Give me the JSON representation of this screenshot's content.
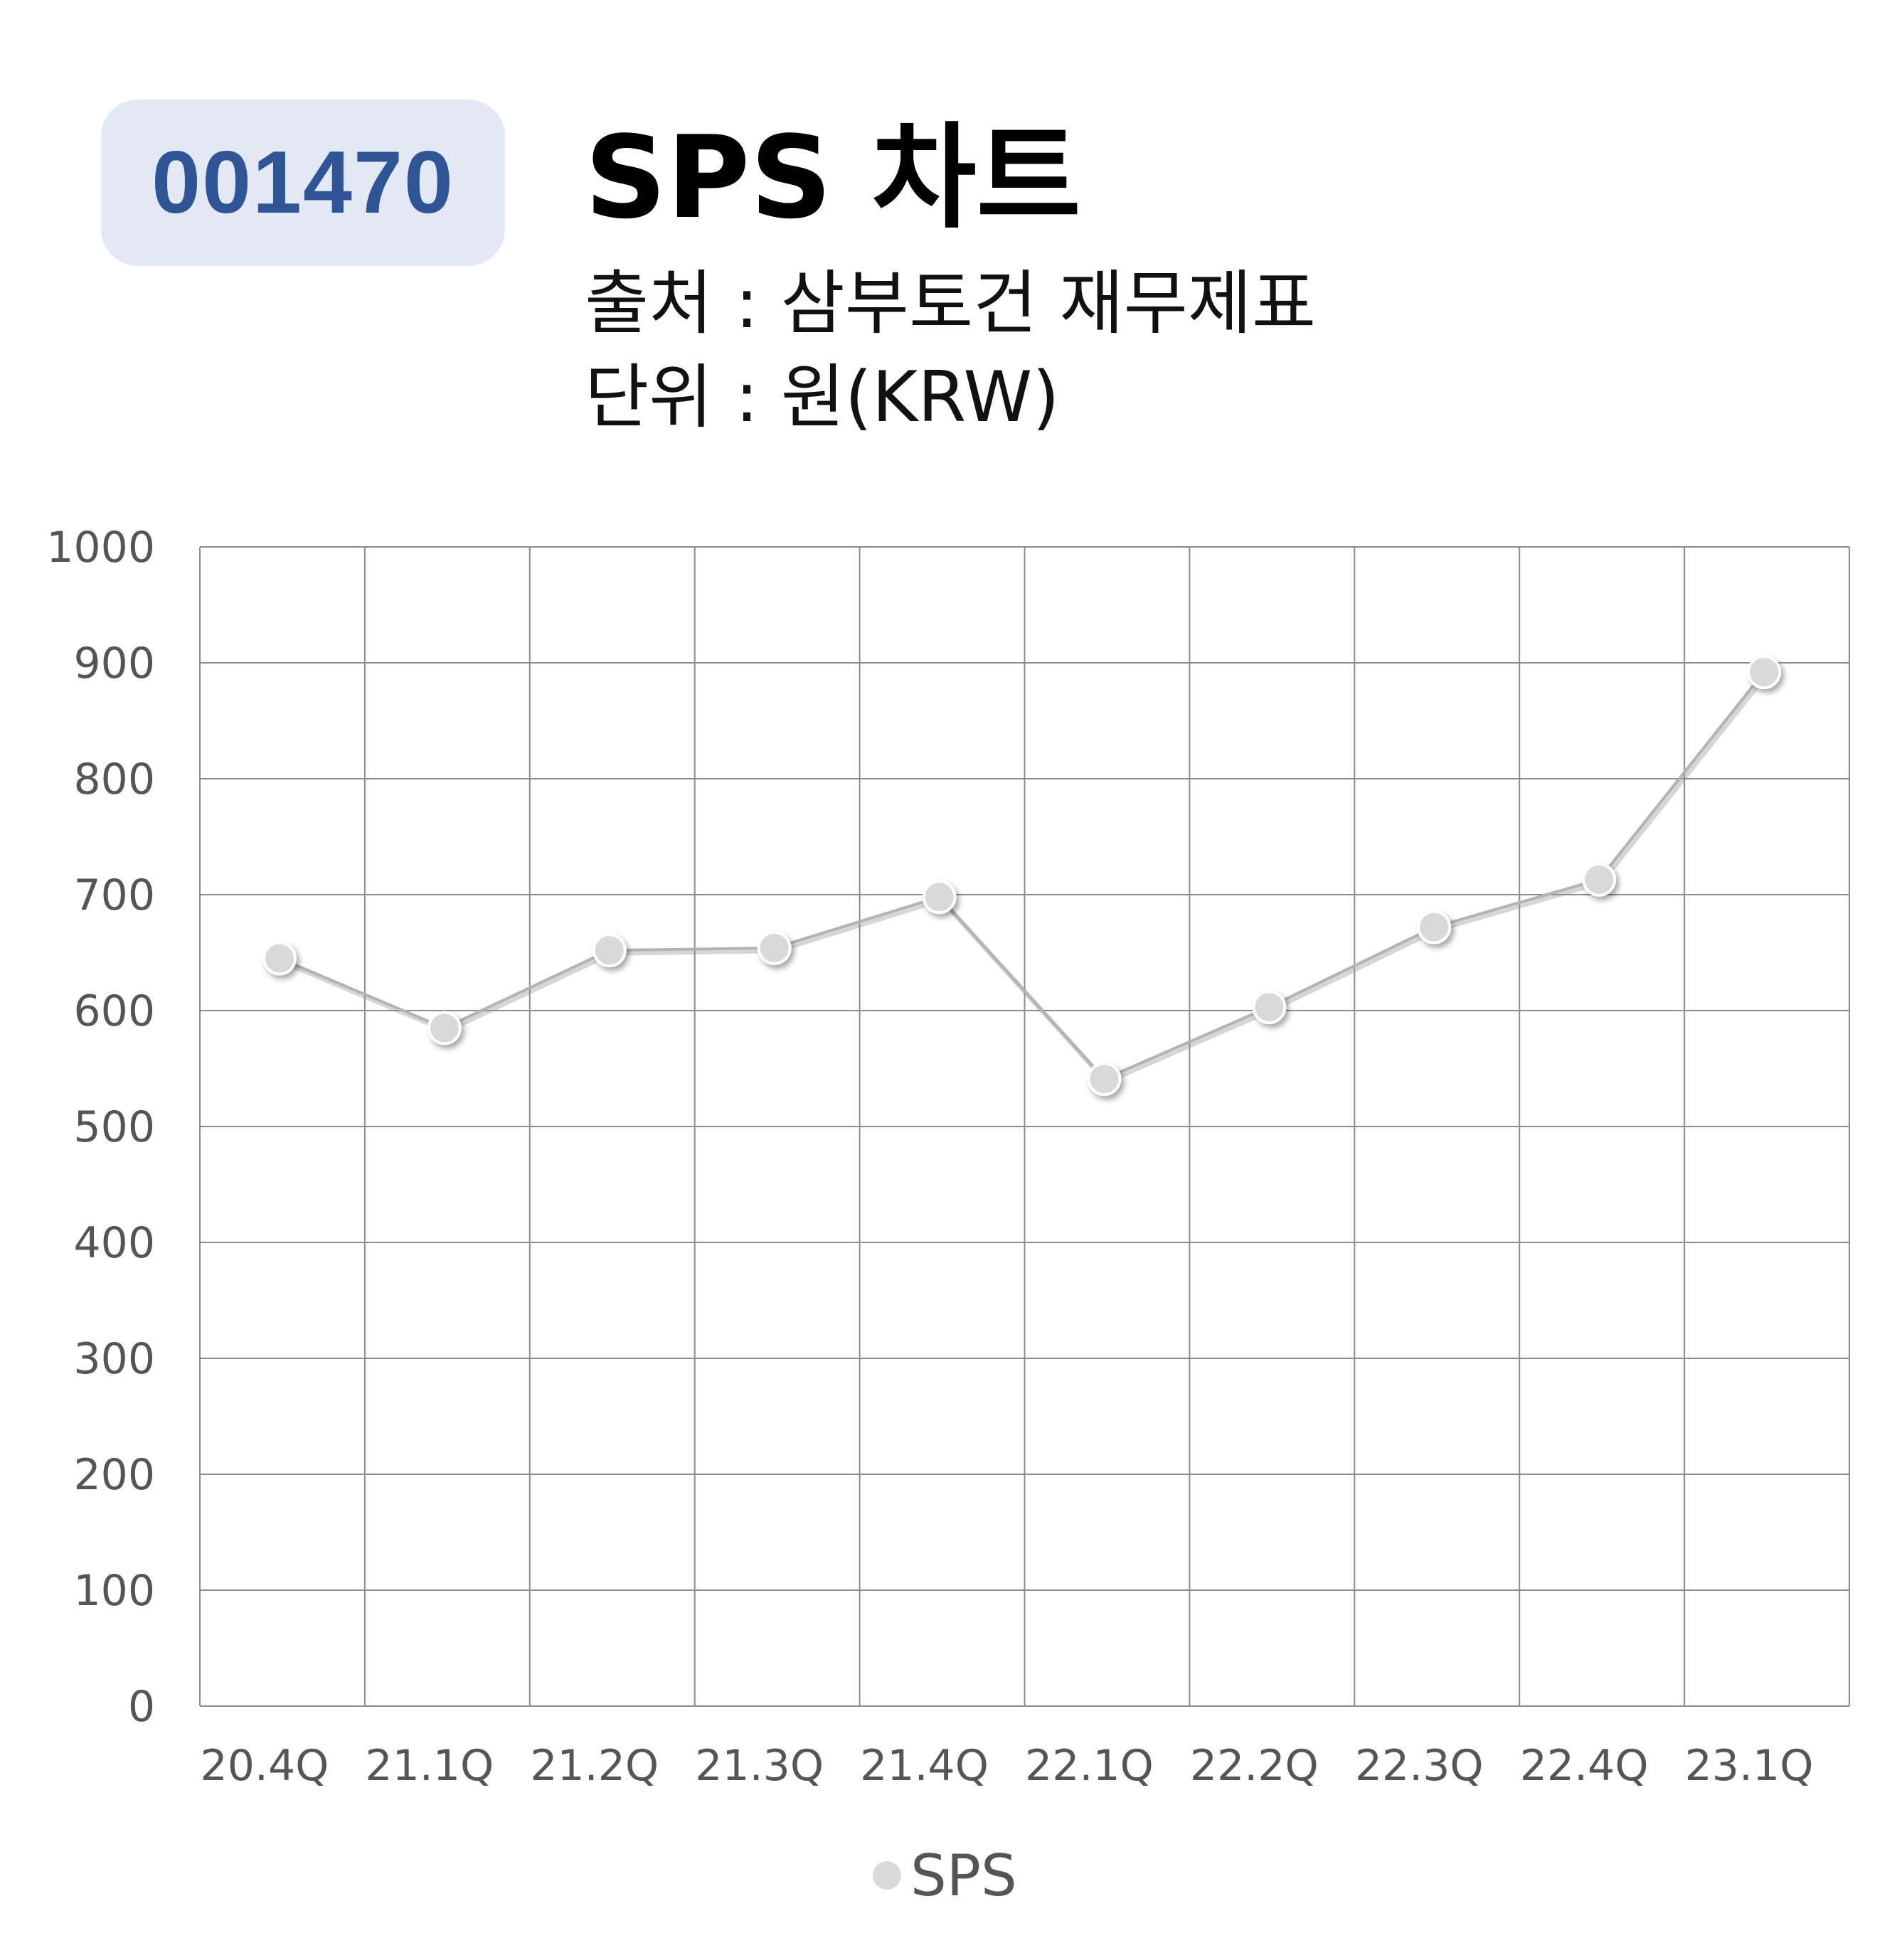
{
  "header": {
    "code": "001470",
    "title": "SPS 차트",
    "source": "출처 : 삼부토건 재무제표",
    "unit": "단위 : 원(KRW)"
  },
  "colors": {
    "badge_bg": "#e3e9f4",
    "badge_text": "#2f5597",
    "series_line": "#b3b3b3",
    "marker_fill": "#d9d9d9",
    "grid": "#8c8c8c"
  },
  "chart_data": {
    "type": "line",
    "categories": [
      "20.4Q",
      "21.1Q",
      "21.2Q",
      "21.3Q",
      "21.4Q",
      "22.1Q",
      "22.2Q",
      "22.3Q",
      "22.4Q",
      "23.1Q"
    ],
    "series": [
      {
        "name": "SPS",
        "values": [
          645,
          585,
          652,
          654,
          698,
          541,
          603,
          672,
          713,
          892
        ]
      }
    ],
    "y_ticks": [
      "0",
      "100",
      "200",
      "300",
      "400",
      "500",
      "600",
      "700",
      "800",
      "900",
      "1000"
    ],
    "ylim": [
      0,
      1000
    ],
    "grid": true,
    "legend": {
      "position": "bottom",
      "entries": [
        "SPS"
      ]
    }
  }
}
